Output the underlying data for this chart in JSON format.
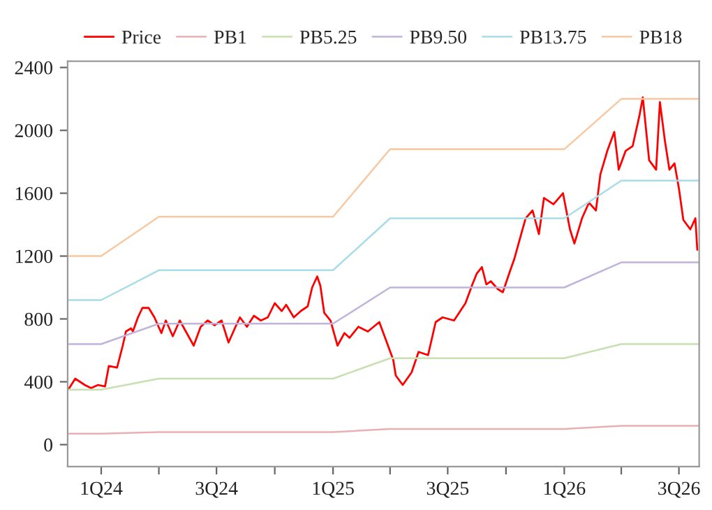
{
  "chart_data": {
    "type": "line",
    "x": [
      "2023-11-09",
      "2024-01-01",
      "2024-04-01",
      "2025-01-01",
      "2025-04-01",
      "2026-01-01",
      "2026-04-01",
      "2026-08-02"
    ],
    "xlim": [
      "2023-11-09",
      "2026-08-02"
    ],
    "xticks": [
      {
        "value": "2024-01-01",
        "label": "1Q24"
      },
      {
        "value": "2024-04-01",
        "label": null
      },
      {
        "value": "2024-07-01",
        "label": "3Q24"
      },
      {
        "value": "2024-10-01",
        "label": null
      },
      {
        "value": "2025-01-01",
        "label": "1Q25"
      },
      {
        "value": "2025-04-01",
        "label": null
      },
      {
        "value": "2025-07-01",
        "label": "3Q25"
      },
      {
        "value": "2025-10-01",
        "label": null
      },
      {
        "value": "2026-01-01",
        "label": "1Q26"
      },
      {
        "value": "2026-04-01",
        "label": null
      },
      {
        "value": "2026-07-01",
        "label": "3Q26"
      }
    ],
    "ylim": [
      -140,
      2440
    ],
    "yticks": [
      0,
      400,
      800,
      1200,
      1600,
      2000,
      2400
    ],
    "legend": "top",
    "grid": false,
    "series": [
      {
        "name": "Price",
        "color": "#ff0000",
        "x": [
          "2023-11-10",
          "2023-11-21",
          "2023-12-06",
          "2023-12-16",
          "2023-12-27",
          "2024-01-07",
          "2024-01-13",
          "2024-01-26",
          "2024-02-04",
          "2024-02-09",
          "2024-02-17",
          "2024-02-20",
          "2024-02-28",
          "2024-03-06",
          "2024-03-16",
          "2024-03-25",
          "2024-04-05",
          "2024-04-12",
          "2024-04-23",
          "2024-05-04",
          "2024-05-15",
          "2024-05-26",
          "2024-06-06",
          "2024-06-17",
          "2024-06-28",
          "2024-07-09",
          "2024-07-20",
          "2024-07-31",
          "2024-08-07",
          "2024-08-18",
          "2024-08-29",
          "2024-09-09",
          "2024-09-20",
          "2024-10-01",
          "2024-10-12",
          "2024-10-19",
          "2024-10-31",
          "2024-11-11",
          "2024-11-22",
          "2024-11-29",
          "2024-12-07",
          "2024-12-12",
          "2024-12-18",
          "2024-12-28",
          "2025-01-08",
          "2025-01-19",
          "2025-01-27",
          "2025-02-10",
          "2025-02-25",
          "2025-03-15",
          "2025-03-26",
          "2025-04-06",
          "2025-04-10",
          "2025-04-21",
          "2025-05-05",
          "2025-05-16",
          "2025-05-31",
          "2025-06-12",
          "2025-06-23",
          "2025-07-11",
          "2025-07-29",
          "2025-08-09",
          "2025-08-16",
          "2025-08-24",
          "2025-08-31",
          "2025-09-07",
          "2025-09-18",
          "2025-09-26",
          "2025-10-07",
          "2025-10-14",
          "2025-10-25",
          "2025-11-01",
          "2025-11-12",
          "2025-11-22",
          "2025-11-30",
          "2025-12-15",
          "2025-12-30",
          "2026-01-10",
          "2026-01-17",
          "2026-01-29",
          "2026-02-09",
          "2026-02-20",
          "2026-02-27",
          "2026-03-10",
          "2026-03-21",
          "2026-03-28",
          "2026-04-08",
          "2026-04-19",
          "2026-04-30",
          "2026-05-05",
          "2026-05-15",
          "2026-05-26",
          "2026-06-01",
          "2026-06-09",
          "2026-06-16",
          "2026-06-24",
          "2026-07-01",
          "2026-07-08",
          "2026-07-19",
          "2026-07-27",
          "2026-07-30"
        ],
        "values": [
          350,
          420,
          380,
          360,
          380,
          370,
          500,
          490,
          630,
          720,
          740,
          720,
          810,
          870,
          870,
          810,
          710,
          790,
          690,
          790,
          710,
          630,
          750,
          790,
          760,
          790,
          650,
          750,
          810,
          750,
          820,
          790,
          810,
          900,
          850,
          890,
          810,
          850,
          880,
          1000,
          1070,
          1010,
          840,
          790,
          630,
          710,
          680,
          750,
          720,
          780,
          660,
          540,
          440,
          380,
          460,
          590,
          570,
          780,
          810,
          790,
          900,
          1020,
          1090,
          1130,
          1020,
          1040,
          990,
          970,
          1100,
          1180,
          1340,
          1440,
          1490,
          1340,
          1570,
          1530,
          1600,
          1370,
          1280,
          1440,
          1540,
          1490,
          1720,
          1870,
          1990,
          1750,
          1870,
          1900,
          2100,
          2210,
          1810,
          1750,
          2180,
          1930,
          1750,
          1790,
          1630,
          1430,
          1370,
          1440,
          1240
        ]
      },
      {
        "name": "PB1",
        "color": "#e8b0b4",
        "values": [
          70,
          70,
          80,
          80,
          100,
          100,
          120,
          120
        ]
      },
      {
        "name": "PB5.25",
        "color": "#c8e0b0",
        "values": [
          350,
          350,
          420,
          420,
          550,
          550,
          640,
          640
        ]
      },
      {
        "name": "PB9.50",
        "color": "#c0b4dc",
        "values": [
          640,
          640,
          770,
          770,
          1000,
          1000,
          1160,
          1160
        ]
      },
      {
        "name": "PB13.75",
        "color": "#a8dce8",
        "values": [
          920,
          920,
          1110,
          1110,
          1440,
          1440,
          1680,
          1680
        ]
      },
      {
        "name": "PB18",
        "color": "#f8c8a0",
        "values": [
          1200,
          1200,
          1450,
          1450,
          1880,
          1880,
          2200,
          2200
        ]
      }
    ]
  }
}
